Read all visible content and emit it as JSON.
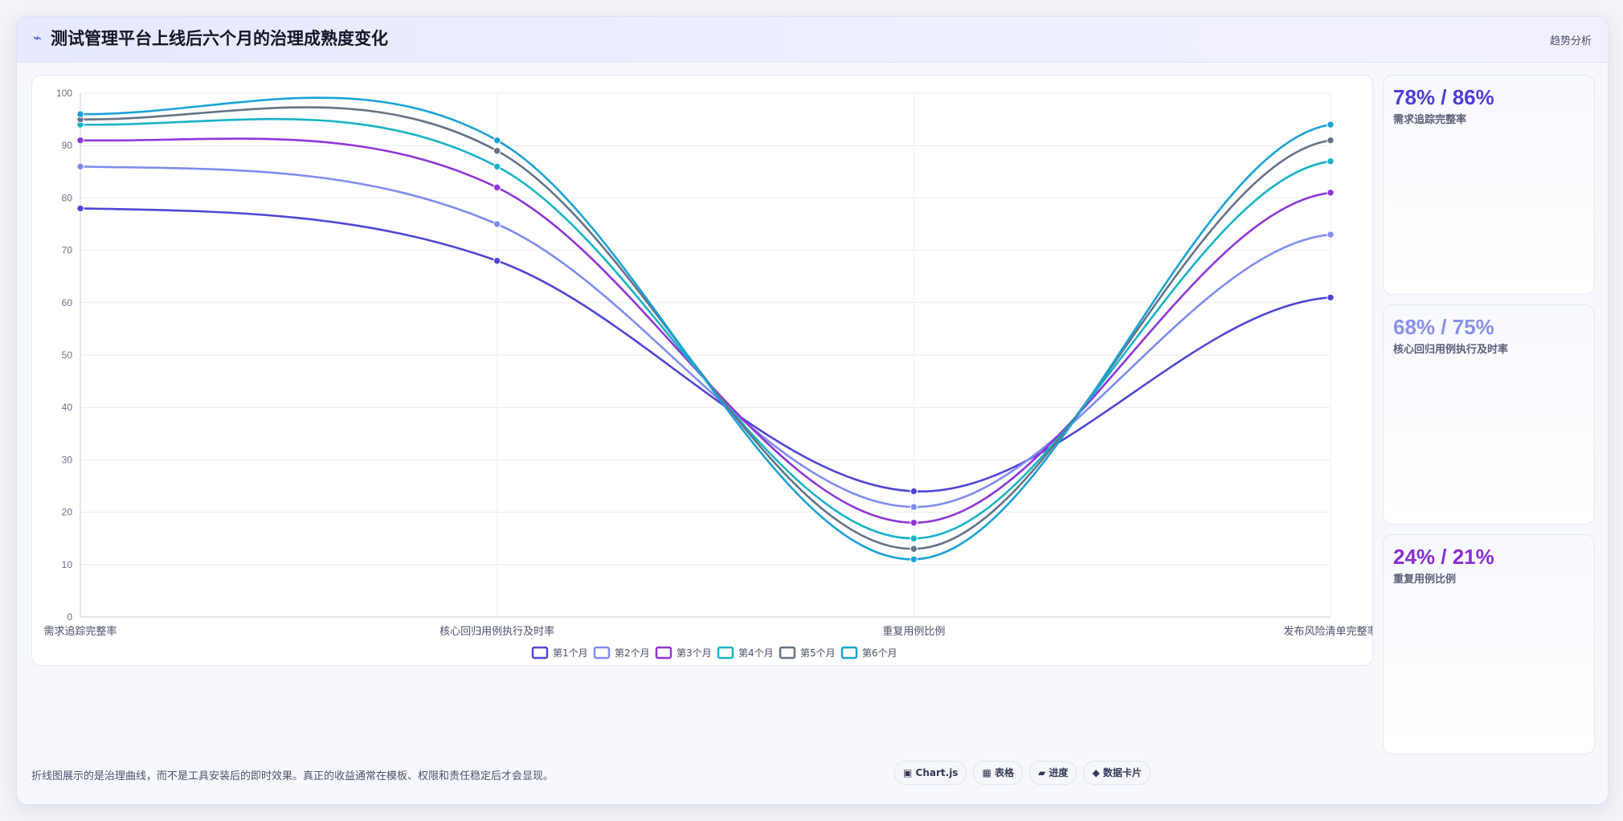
{
  "header": {
    "logo_icon": "chart-line-icon",
    "title": "测试管理平台上线后六个月的治理成熟度变化",
    "tag": "趋势分析"
  },
  "chart_data": {
    "type": "line",
    "categories": [
      "需求追踪完整率",
      "核心回归用例执行及时率",
      "重复用例比例",
      "发布风险清单完整率"
    ],
    "ylim": [
      0,
      100
    ],
    "yticks": [
      0,
      10,
      20,
      30,
      40,
      50,
      60,
      70,
      80,
      90,
      100
    ],
    "grid": true,
    "legend_position": "bottom",
    "series": [
      {
        "name": "第1个月",
        "color": "#4f46d6",
        "values": [
          78,
          68,
          24,
          61
        ]
      },
      {
        "name": "第2个月",
        "color": "#818cf0",
        "values": [
          86,
          75,
          21,
          73
        ]
      },
      {
        "name": "第3个月",
        "color": "#8e36d8",
        "values": [
          91,
          82,
          18,
          81
        ]
      },
      {
        "name": "第4个月",
        "color": "#18b3c6",
        "values": [
          94,
          86,
          15,
          87
        ]
      },
      {
        "name": "第5个月",
        "color": "#667286",
        "values": [
          95,
          89,
          13,
          91
        ]
      },
      {
        "name": "第6个月",
        "color": "#1aa2d6",
        "values": [
          96,
          91,
          11,
          94
        ]
      }
    ]
  },
  "cards": [
    {
      "value": "78% / 86%",
      "label": "需求追踪完整率",
      "color": "#4f3fd3"
    },
    {
      "value": "68% / 75%",
      "label": "核心回归用例执行及时率",
      "color": "#8a90ec"
    },
    {
      "value": "24% / 21%",
      "label": "重复用例比例",
      "color": "#8a2fd6"
    }
  ],
  "footer": {
    "note": "折线图展示的是治理曲线，而不是工具安装后的即时效果。真正的收益通常在模板、权限和责任稳定后才会显现。",
    "chips": [
      {
        "icon": "chart-icon",
        "glyph": "▣",
        "label": "Chart.js"
      },
      {
        "icon": "table-icon",
        "glyph": "▦",
        "label": "表格"
      },
      {
        "icon": "progress-icon",
        "glyph": "▰",
        "label": "进度"
      },
      {
        "icon": "data-card-icon",
        "glyph": "◆",
        "label": "数据卡片"
      }
    ]
  }
}
